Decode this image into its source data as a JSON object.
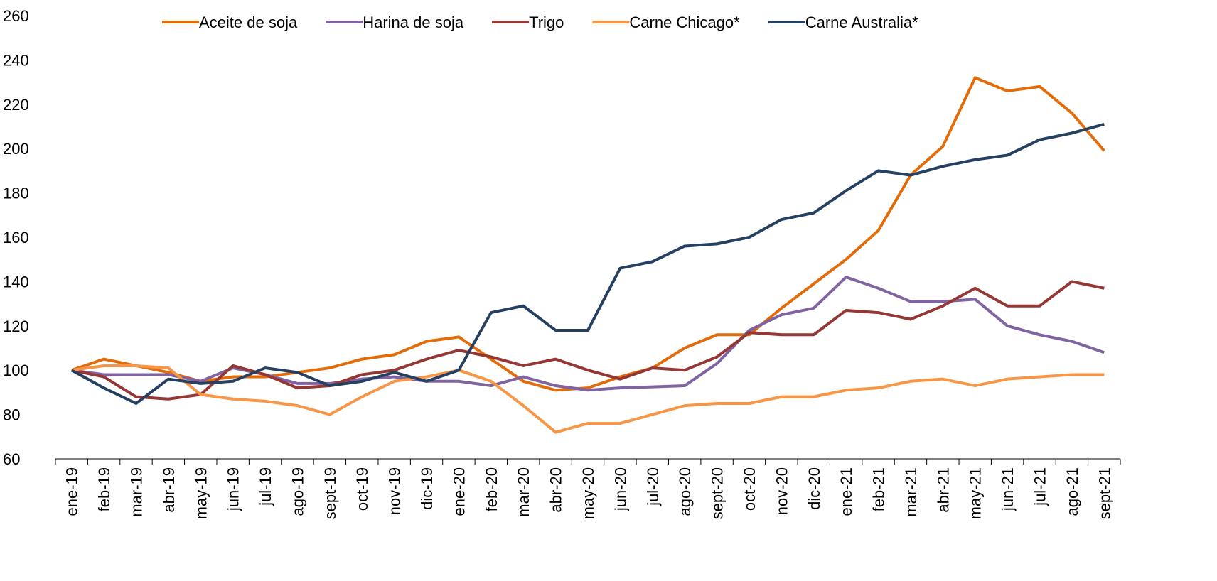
{
  "chart_data": {
    "type": "line",
    "categories": [
      "ene-19",
      "feb-19",
      "mar-19",
      "abr-19",
      "may-19",
      "jun-19",
      "jul-19",
      "ago-19",
      "sept-19",
      "oct-19",
      "nov-19",
      "dic-19",
      "ene-20",
      "feb-20",
      "mar-20",
      "abr-20",
      "may-20",
      "jun-20",
      "jul-20",
      "ago-20",
      "sept-20",
      "oct-20",
      "nov-20",
      "dic-20",
      "ene-21",
      "feb-21",
      "mar-21",
      "abr-21",
      "may-21",
      "jun-21",
      "jul-21",
      "ago-21",
      "sept-21"
    ],
    "series": [
      {
        "name": "Aceite de soja",
        "color": "#e36c0a",
        "values": [
          100,
          105,
          102,
          99,
          95,
          97,
          97,
          99,
          101,
          105,
          107,
          113,
          115,
          105,
          95,
          91,
          92,
          97,
          101,
          110,
          116,
          116,
          128,
          139,
          150,
          163,
          188,
          201,
          232,
          226,
          228,
          216,
          199
        ]
      },
      {
        "name": "Harina de soja",
        "color": "#8064a2",
        "values": [
          100,
          98,
          98,
          98,
          95,
          101,
          98,
          94,
          94,
          96,
          97,
          95,
          95,
          93,
          97,
          93,
          91,
          92,
          92.5,
          93,
          103,
          118,
          125,
          128,
          142,
          137,
          131,
          131,
          132,
          120,
          116,
          113,
          108
        ]
      },
      {
        "name": "Trigo",
        "color": "#953735",
        "values": [
          100,
          97,
          88,
          87,
          89,
          102,
          98,
          92,
          93,
          98,
          100,
          105,
          109,
          106,
          102,
          105,
          100,
          96,
          101,
          100,
          106,
          117,
          116,
          116,
          127,
          126,
          123,
          129,
          137,
          129,
          129,
          140,
          137
        ]
      },
      {
        "name": "Carne Chicago*",
        "color": "#f79646",
        "values": [
          100,
          102,
          102,
          101,
          89,
          87,
          86,
          84,
          80,
          88,
          95,
          97,
          100,
          95,
          84,
          72,
          76,
          76,
          80,
          84,
          85,
          85,
          88,
          88,
          91,
          92,
          95,
          96,
          93,
          96,
          97,
          98,
          98
        ]
      },
      {
        "name": "Carne Australia*",
        "color": "#254061",
        "values": [
          100,
          92,
          85,
          96,
          94,
          95,
          101,
          99,
          93,
          95,
          99,
          95,
          100,
          126,
          129,
          118,
          118,
          146,
          149,
          156,
          157,
          160,
          168,
          171,
          181,
          190,
          188,
          192,
          195,
          197,
          204,
          207,
          211
        ]
      }
    ],
    "ylim": [
      60,
      260
    ],
    "yticks": [
      60,
      80,
      100,
      120,
      140,
      160,
      180,
      200,
      220,
      240,
      260
    ],
    "grid": false,
    "legend": "top"
  }
}
